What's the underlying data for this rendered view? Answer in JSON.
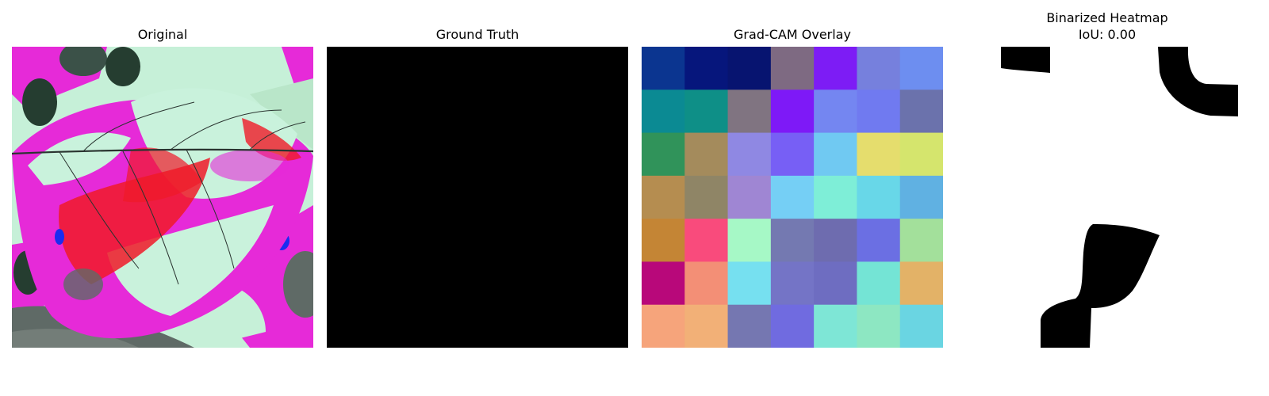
{
  "panels": {
    "original": {
      "title": "Original"
    },
    "ground_truth": {
      "title": "Ground Truth"
    },
    "gradcam": {
      "title": "Grad-CAM Overlay",
      "grid": [
        [
          "#0b3590",
          "#06167c",
          "#071470",
          "#7e6a82",
          "#7d1cf5",
          "#7680dd",
          "#6d8ef0"
        ],
        [
          "#0b8a93",
          "#0e8f87",
          "#807481",
          "#7e19f7",
          "#7486f1",
          "#707af0",
          "#6b72ac"
        ],
        [
          "#30935a",
          "#a48b5c",
          "#8f88e3",
          "#775ff5",
          "#70c9f2",
          "#e5dd6d",
          "#d5e56d"
        ],
        [
          "#b58d50",
          "#8f8566",
          "#9f86d3",
          "#75cff5",
          "#7eeed7",
          "#68d7e8",
          "#60b1e2"
        ],
        [
          "#c48535",
          "#f94b7c",
          "#a6f8c6",
          "#7479b1",
          "#6e6caf",
          "#6b6fe3",
          "#a3e09b"
        ],
        [
          "#b8087a",
          "#f38f76",
          "#76e0f0",
          "#7474c6",
          "#6e6dc1",
          "#74e4d5",
          "#e3b267"
        ],
        [
          "#f6a47b",
          "#f2b077",
          "#7577b1",
          "#706be0",
          "#7ee6d6",
          "#8de7c2",
          "#6ad5e2"
        ]
      ]
    },
    "binarized": {
      "title": "Binarized Heatmap",
      "iou_label": "IoU: 0.00"
    }
  },
  "colors": {
    "leaf_pink": "#e62ad8",
    "leaf_mint": "#c9f2dc",
    "leaf_red": "#f01a28",
    "shadow_gray": "#5f6a66",
    "dark_green": "#253d30",
    "mask_black": "#000000"
  }
}
